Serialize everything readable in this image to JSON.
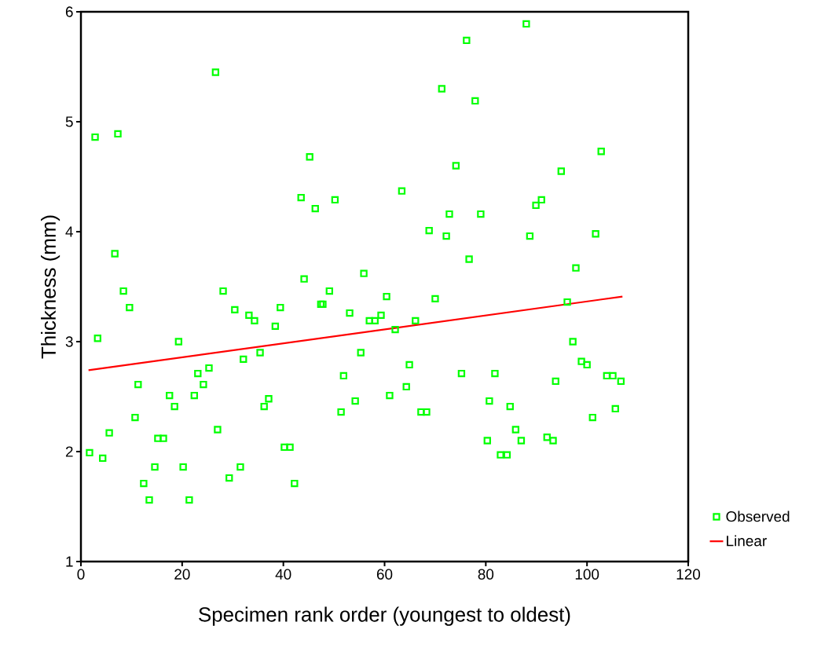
{
  "chart_data": {
    "type": "scatter",
    "xlabel": "Specimen rank order (youngest to oldest)",
    "ylabel": "Thickness (mm)",
    "xlim": [
      0,
      120
    ],
    "ylim": [
      1,
      6
    ],
    "xticks": [
      0,
      20,
      40,
      60,
      80,
      100,
      120
    ],
    "yticks": [
      1,
      2,
      3,
      4,
      5,
      6
    ],
    "grid": false,
    "legend": "right",
    "series": [
      {
        "name": "Observed",
        "marker": "square",
        "color": "#00ff00",
        "x": [
          1.7,
          2.8,
          3.3,
          4.3,
          5.6,
          6.7,
          7.3,
          8.4,
          9.6,
          10.7,
          11.3,
          12.4,
          13.5,
          14.6,
          15.2,
          16.3,
          17.5,
          18.5,
          19.3,
          20.2,
          21.4,
          22.4,
          23.1,
          24.2,
          25.3,
          26.6,
          27.0,
          28.1,
          29.3,
          30.4,
          31.5,
          32.1,
          33.2,
          34.3,
          35.4,
          36.2,
          37.1,
          38.4,
          39.4,
          40.2,
          41.3,
          42.2,
          43.5,
          44.1,
          45.2,
          46.3,
          47.4,
          47.8,
          49.1,
          50.2,
          51.4,
          51.9,
          53.1,
          54.2,
          55.3,
          55.9,
          57.0,
          58.1,
          59.3,
          60.4,
          61.0,
          62.1,
          63.4,
          64.3,
          64.9,
          66.1,
          67.2,
          68.3,
          68.8,
          70.0,
          71.3,
          72.2,
          72.8,
          74.1,
          75.2,
          76.2,
          76.7,
          77.9,
          79.0,
          80.3,
          80.7,
          81.8,
          82.9,
          84.2,
          84.8,
          85.9,
          87.0,
          88.0,
          88.7,
          89.9,
          91.0,
          92.1,
          93.3,
          93.8,
          94.9,
          96.1,
          97.2,
          97.8,
          98.9,
          100.0,
          101.1,
          101.7,
          102.8,
          103.9,
          105.1,
          105.6,
          106.7
        ],
        "values": [
          1.99,
          4.86,
          3.03,
          1.94,
          2.17,
          3.8,
          4.89,
          3.46,
          3.31,
          2.31,
          2.61,
          1.71,
          1.56,
          1.86,
          2.12,
          2.12,
          2.51,
          2.41,
          3.0,
          1.86,
          1.56,
          2.51,
          2.71,
          2.61,
          2.76,
          5.45,
          2.2,
          3.46,
          1.76,
          3.29,
          1.86,
          2.84,
          3.24,
          3.19,
          2.9,
          2.41,
          2.48,
          3.14,
          3.31,
          2.04,
          2.04,
          1.71,
          4.31,
          3.57,
          4.68,
          4.21,
          3.34,
          3.34,
          3.46,
          4.29,
          2.36,
          2.69,
          3.26,
          2.46,
          2.9,
          3.62,
          3.19,
          3.19,
          3.24,
          3.41,
          2.51,
          3.11,
          4.37,
          2.59,
          2.79,
          3.19,
          2.36,
          2.36,
          4.01,
          3.39,
          5.3,
          3.96,
          4.16,
          4.6,
          2.71,
          5.74,
          3.75,
          5.19,
          4.16,
          2.1,
          2.46,
          2.71,
          1.97,
          1.97,
          2.41,
          2.2,
          2.1,
          5.89,
          3.96,
          4.24,
          4.29,
          2.13,
          2.1,
          2.64,
          4.55,
          3.36,
          3.0,
          3.67,
          2.82,
          2.79,
          2.31,
          3.98,
          4.73,
          2.69,
          2.69,
          2.39,
          2.64
        ]
      },
      {
        "name": "Linear",
        "type": "line",
        "marker": "none",
        "color": "#ff0000",
        "x": [
          1.5,
          107
        ],
        "values": [
          2.74,
          3.41
        ]
      }
    ]
  }
}
